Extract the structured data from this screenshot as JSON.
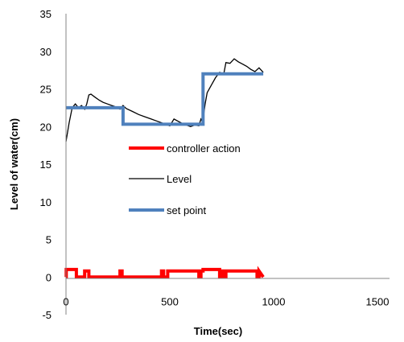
{
  "chart_data": {
    "type": "line",
    "xlabel": "Time(sec)",
    "ylabel": "Level of water(cm)",
    "xlim": [
      0,
      1500
    ],
    "ylim": [
      -5,
      35
    ],
    "x_ticks": [
      0,
      500,
      1000,
      1500
    ],
    "y_ticks": [
      -5,
      0,
      5,
      10,
      15,
      20,
      25,
      30,
      35
    ],
    "grid": false,
    "legend_position": "center-left",
    "series": [
      {
        "name": "controller action",
        "color": "#ff0000",
        "x": [
          0,
          1,
          1,
          40,
          45,
          50,
          50,
          90,
          90,
          100,
          100,
          110,
          110,
          260,
          260,
          270,
          270,
          460,
          460,
          470,
          470,
          490,
          490,
          640,
          640,
          650,
          650,
          660,
          660,
          670,
          670,
          740,
          740,
          750,
          750,
          760,
          760,
          770,
          770,
          920,
          920,
          930,
          930,
          950
        ],
        "y": [
          0,
          0,
          1,
          1,
          1,
          1,
          0,
          0,
          0.8,
          0.8,
          0.8,
          0.8,
          0,
          0,
          0.8,
          0.8,
          0,
          0,
          0.8,
          0.8,
          0,
          0,
          0.8,
          0.8,
          0,
          0,
          0.8,
          0.8,
          1,
          1,
          1,
          1,
          0,
          0,
          0.8,
          0.8,
          0,
          0,
          0.8,
          0.8,
          0,
          0,
          0.8,
          0
        ]
      },
      {
        "name": "Level",
        "color": "#000000",
        "x": [
          0,
          15,
          30,
          45,
          60,
          75,
          90,
          100,
          110,
          120,
          140,
          160,
          180,
          200,
          220,
          240,
          260,
          275,
          290,
          320,
          350,
          380,
          410,
          440,
          470,
          500,
          520,
          540,
          560,
          580,
          600,
          620,
          640,
          650,
          660,
          665,
          670,
          680,
          700,
          720,
          740,
          760,
          770,
          790,
          810,
          830,
          850,
          870,
          890,
          910,
          930,
          950
        ],
        "y": [
          18,
          20.5,
          22.5,
          23,
          22.5,
          22.8,
          22.3,
          23,
          24.2,
          24.3,
          23.9,
          23.5,
          23.2,
          23,
          22.8,
          22.6,
          22.3,
          22.8,
          22.4,
          22,
          21.6,
          21.3,
          21,
          20.7,
          20.4,
          20.1,
          21,
          20.7,
          20.4,
          20.2,
          20,
          20.2,
          20.1,
          21,
          20.5,
          22,
          23,
          24.5,
          25.5,
          26.5,
          27.2,
          27,
          28.5,
          28.4,
          29,
          28.6,
          28.3,
          28,
          27.6,
          27.3,
          27.8,
          27.2
        ]
      },
      {
        "name": "set point",
        "color": "#4f81bd",
        "x": [
          0,
          275,
          275,
          660,
          660,
          950
        ],
        "y": [
          22.5,
          22.5,
          20.3,
          20.3,
          27,
          27
        ]
      }
    ]
  }
}
